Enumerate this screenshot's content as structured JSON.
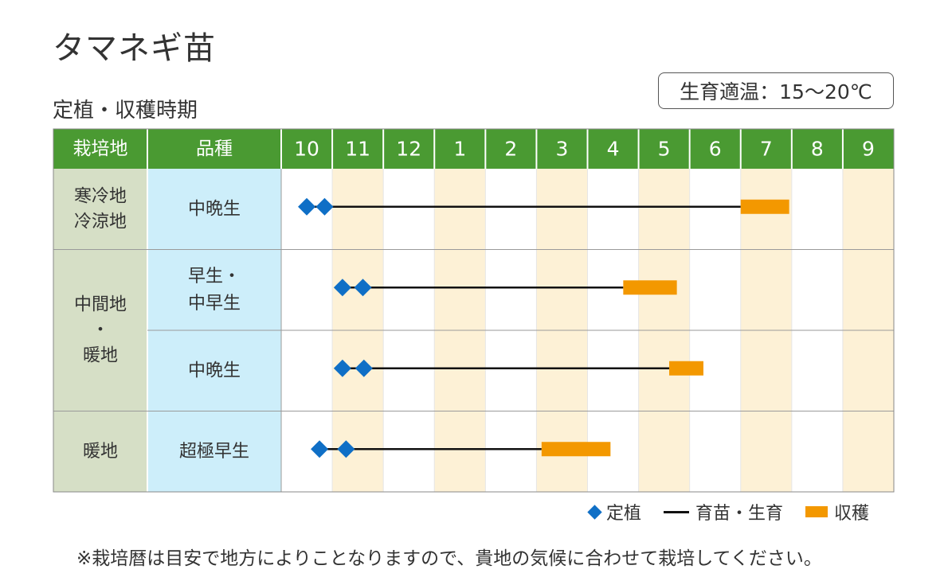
{
  "title": "タマネギ苗",
  "subtitle": "定植・収穫時期",
  "temp_badge": "生育適温：15〜20℃",
  "legend": {
    "planting": "定植",
    "growth": "育苗・生育",
    "harvest": "収穫"
  },
  "note": "※栽培暦は目安で地方によりことなりますので、貴地の気候に合わせて栽培してください。",
  "colors": {
    "header_green": "#4a9a32",
    "region_bg": "#d6dfc6",
    "variety_bg": "#cdeefa",
    "stripe": "#fdf1d6",
    "diamond": "#0f6fc6",
    "harvest": "#f39800"
  },
  "chart_data": {
    "type": "table",
    "headers": {
      "region": "栽培地",
      "variety": "品種"
    },
    "months": [
      "10",
      "11",
      "12",
      "1",
      "2",
      "3",
      "4",
      "5",
      "6",
      "7",
      "8",
      "9"
    ],
    "highlighted_month_indexes": [
      1,
      3,
      5,
      7,
      9,
      11
    ],
    "regions": [
      {
        "label_lines": [
          "寒冷地",
          "冷涼地"
        ],
        "rows": [
          0
        ]
      },
      {
        "label_lines": [
          "中間地",
          "・",
          "暖地"
        ],
        "rows": [
          1,
          2
        ]
      },
      {
        "label_lines": [
          "暖地"
        ],
        "rows": [
          3
        ]
      }
    ],
    "rows": [
      {
        "variety_lines": [
          "中晩生"
        ],
        "plant_months": [
          0.5,
          0.85
        ],
        "harvest": [
          9.0,
          9.95
        ]
      },
      {
        "variety_lines": [
          "早生・",
          "中早生"
        ],
        "plant_months": [
          1.2,
          1.6
        ],
        "harvest": [
          6.7,
          7.75
        ]
      },
      {
        "variety_lines": [
          "中晩生"
        ],
        "plant_months": [
          1.2,
          1.62
        ],
        "harvest": [
          7.6,
          8.27
        ]
      },
      {
        "variety_lines": [
          "超極早生"
        ],
        "plant_months": [
          0.75,
          1.27
        ],
        "harvest": [
          5.1,
          6.45
        ]
      }
    ]
  }
}
